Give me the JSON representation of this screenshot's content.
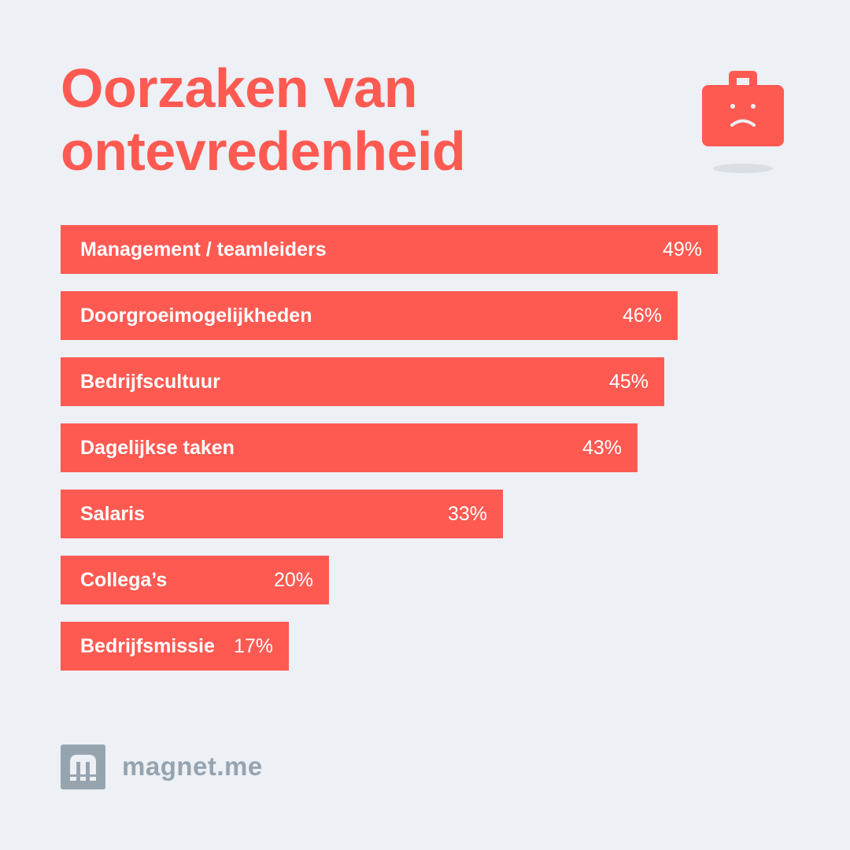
{
  "title": {
    "line1": "Oorzaken van",
    "line2": "ontevredenheid"
  },
  "illustration": {
    "icon": "sad-briefcase-icon",
    "color": "#fe5a52",
    "shadow": "#d9dee4"
  },
  "chart_data": {
    "type": "bar",
    "orientation": "horizontal",
    "title": "Oorzaken van ontevredenheid",
    "categories": [
      "Management / teamleiders",
      "Doorgroeimogelijkheden",
      "Bedrijfscultuur",
      "Dagelijkse taken",
      "Salaris",
      "Collega’s",
      "Bedrijfsmissie"
    ],
    "values": [
      49,
      46,
      45,
      43,
      33,
      20,
      17
    ],
    "value_labels": [
      "49%",
      "46%",
      "45%",
      "43%",
      "33%",
      "20%",
      "17%"
    ],
    "unit": "%",
    "grid": false,
    "bar_color": "#fe5a52"
  },
  "footer": {
    "brand": "magnet.me",
    "icon": "magnet-me-logo-icon",
    "color": "#96a4b0"
  },
  "colors": {
    "background": "#edf0f4",
    "accent": "#fe5a52",
    "bar_text": "#ffffff"
  }
}
